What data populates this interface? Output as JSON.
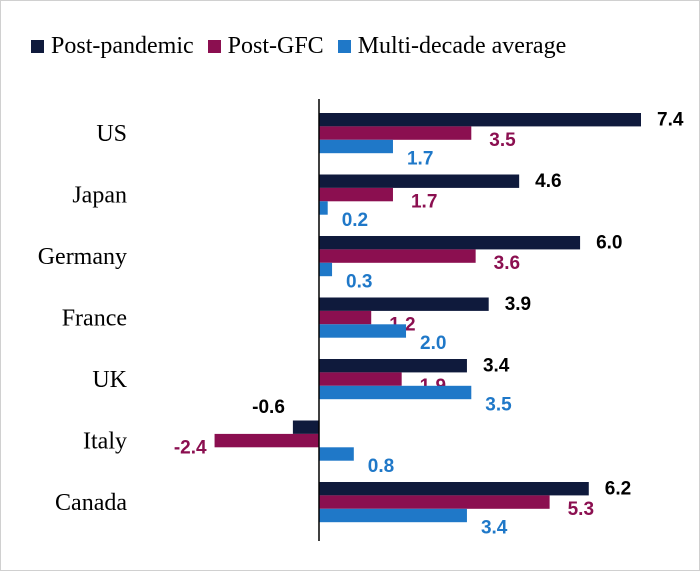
{
  "chart_data": {
    "type": "bar",
    "orientation": "horizontal",
    "categories": [
      "US",
      "Japan",
      "Germany",
      "France",
      "UK",
      "Italy",
      "Canada"
    ],
    "series": [
      {
        "name": "Post-pandemic",
        "color": "#0f1a3c",
        "values": [
          7.4,
          4.6,
          6.0,
          3.9,
          3.4,
          -0.6,
          6.2
        ],
        "labels": [
          "7.4",
          "4.6",
          "6.0",
          "3.9",
          "3.4",
          "-0.6",
          "6.2"
        ]
      },
      {
        "name": "Post-GFC",
        "color": "#8b0f50",
        "values": [
          3.5,
          1.7,
          3.6,
          1.2,
          1.9,
          -2.4,
          5.3
        ],
        "labels": [
          "3.5",
          "1.7",
          "3.6",
          "1.2",
          "1.9",
          "-2.4",
          "5.3"
        ]
      },
      {
        "name": "Multi-decade average",
        "color": "#1f78c8",
        "values": [
          1.7,
          0.2,
          0.3,
          2.0,
          3.5,
          0.8,
          3.4
        ],
        "labels": [
          "1.7",
          "0.2",
          "0.3",
          "2.0",
          "3.5",
          "0.8",
          "3.4"
        ]
      }
    ],
    "xlim": [
      -2.4,
      7.4
    ],
    "grid": false,
    "legend_position": "top",
    "legend": [
      "Post-pandemic",
      "Post-GFC",
      "Multi-decade average"
    ]
  }
}
